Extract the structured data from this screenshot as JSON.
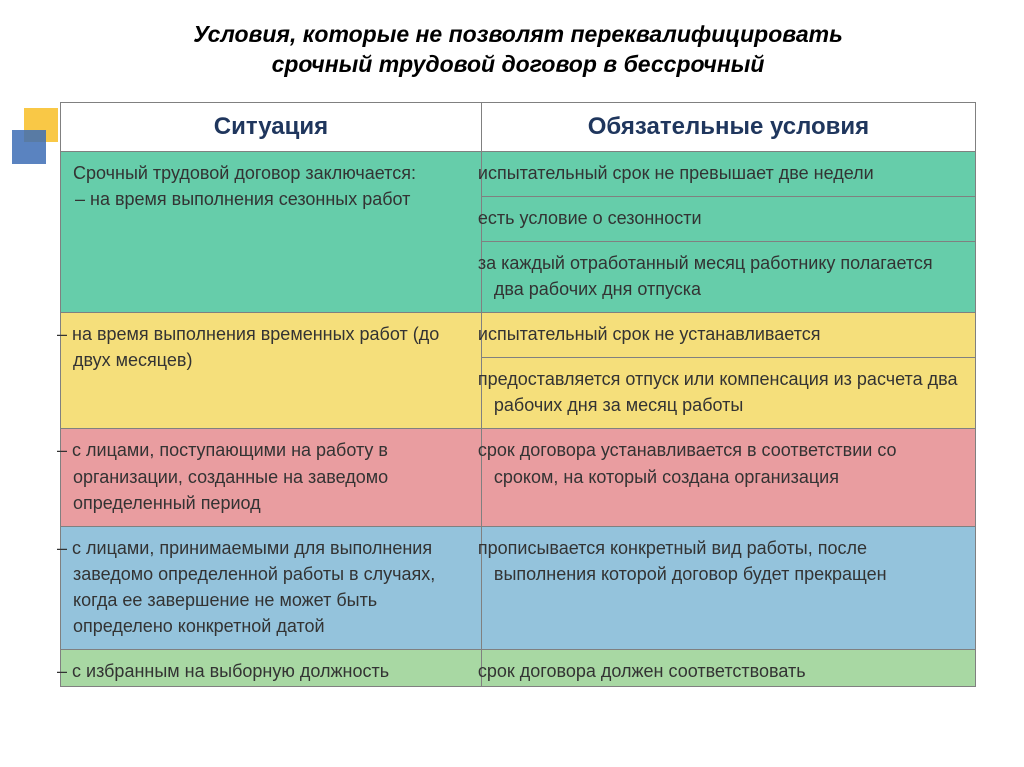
{
  "title_line1": "Условия, которые не позволят переквалифицировать",
  "title_line2": "срочный трудовой договор в бессрочный",
  "headers": {
    "col1": "Ситуация",
    "col2": "Обязательные условия"
  },
  "colors": {
    "header_bg": "#ffffff",
    "teal": "#66cdaa",
    "yellow": "#f5df7b",
    "pink": "#e99da0",
    "blue": "#94c3dc",
    "green": "#a8d8a3",
    "accent1": "#f9c846",
    "accent2": "#3d6db5",
    "title_color": "#000000",
    "header_text": "#1f365d",
    "cell_text": "#333333"
  },
  "fontsizes": {
    "title": 23,
    "header": 24,
    "cell": 18
  },
  "dimensions": {
    "col1_width": "46%",
    "col2_width": "54%"
  },
  "rows": {
    "r1_sit_a": "Срочный трудовой договор заключается:",
    "r1_sit_b": "– на время выполнения сезонных работ",
    "r1_c1": "испытательный срок не превышает две недели",
    "r1_c2": "есть условие о сезонности",
    "r1_c3": "за каждый отработанный месяц работнику полагается два рабочих дня отпуска",
    "r2_sit": "– на время выполнения временных работ (до двух месяцев)",
    "r2_c1": "испытательный срок не устанавливается",
    "r2_c2": "предоставляется отпуск или компенсация из расчета два рабочих дня за месяц работы",
    "r3_sit": "– с лицами, поступающими на работу в организации, созданные на заведомо определенный период",
    "r3_c1": "срок договора устанавливается в соответствии со сроком, на который создана организация",
    "r4_sit": "– с лицами, принимаемыми для выполнения заведомо определенной работы в случаях, когда ее завершение не может быть определено конкретной датой",
    "r4_c1": "прописывается конкретный вид работы, после выполнения которой договор будет прекращен",
    "r5_sit": "– с избранным на выборную должность",
    "r5_c1": "срок договора должен соответствовать"
  }
}
